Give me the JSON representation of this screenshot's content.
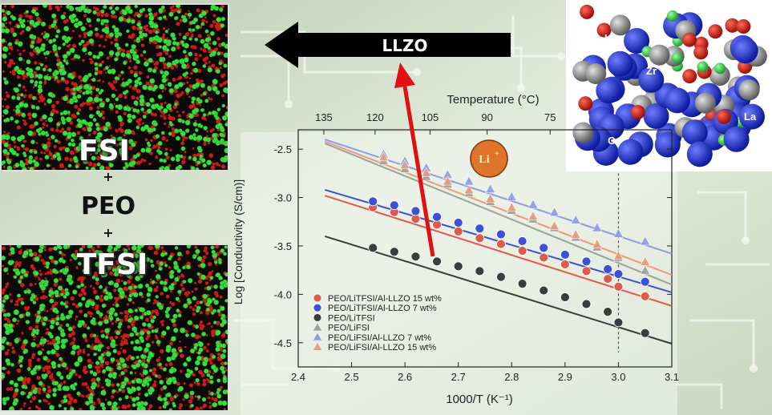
{
  "left_labels": {
    "top": "FSI",
    "plus1": "+",
    "middle": "PEO",
    "plus2": "+",
    "bottom": "TFSI"
  },
  "arrow_label": "LLZO",
  "crystal_labels": {
    "li": "Li",
    "zr": "Zr",
    "la": "La",
    "o": "O"
  },
  "li_badge": {
    "base": "Li",
    "sup": "+"
  },
  "colors": {
    "red_series": "#e05a4a",
    "blue_series": "#3d51d6",
    "black_series": "#3c3c3c",
    "gray_series": "#9aa29a",
    "lightblue_series": "#8d9be6",
    "salmon_series": "#e99a7c",
    "arrow_red": "#e21010",
    "atom_green": "#36e03a",
    "atom_red": "#d21a12"
  },
  "chart_data": {
    "type": "scatter",
    "xlabel": "1000/T (K⁻¹)",
    "ylabel": "Log [Conductivity (S/cm)]",
    "top_axis_label": "Temperature (°C)",
    "xlim": [
      2.4,
      3.1
    ],
    "ylim": [
      -4.75,
      -2.3
    ],
    "xticks": [
      "2.4",
      "2.5",
      "2.6",
      "2.7",
      "2.8",
      "2.9",
      "3.0",
      "3.1"
    ],
    "yticks": [
      "-2.5",
      "-3.0",
      "-3.5",
      "-4.0",
      "-4.5"
    ],
    "top_ticks": [
      {
        "label": "135",
        "x": 2.448
      },
      {
        "label": "120",
        "x": 2.544
      },
      {
        "label": "105",
        "x": 2.647
      },
      {
        "label": "90",
        "x": 2.754
      },
      {
        "label": "75",
        "x": 2.872
      }
    ],
    "vline_x": 3.0,
    "series": [
      {
        "name": "PEO/LiTFSI/Al-LLZO 15 wt%",
        "marker": "circle",
        "color": "#e05a4a",
        "x": [
          2.54,
          2.58,
          2.62,
          2.66,
          2.7,
          2.74,
          2.78,
          2.82,
          2.86,
          2.9,
          2.94,
          2.98,
          3.0,
          3.05
        ],
        "y": [
          -3.1,
          -3.15,
          -3.22,
          -3.28,
          -3.35,
          -3.42,
          -3.48,
          -3.55,
          -3.62,
          -3.69,
          -3.76,
          -3.84,
          -3.92,
          -4.02
        ],
        "fit": [
          [
            2.45,
            -2.98
          ],
          [
            3.1,
            -4.12
          ]
        ]
      },
      {
        "name": "PEO/LiTFSI/Al-LLZO 7 wt%",
        "marker": "circle",
        "color": "#3d51d6",
        "x": [
          2.54,
          2.58,
          2.62,
          2.66,
          2.7,
          2.74,
          2.78,
          2.82,
          2.86,
          2.9,
          2.94,
          2.98,
          3.0,
          3.05
        ],
        "y": [
          -3.04,
          -3.08,
          -3.14,
          -3.2,
          -3.26,
          -3.32,
          -3.38,
          -3.45,
          -3.52,
          -3.59,
          -3.66,
          -3.74,
          -3.79,
          -3.87
        ],
        "fit": [
          [
            2.45,
            -2.92
          ],
          [
            3.1,
            -3.98
          ]
        ]
      },
      {
        "name": "PEO/LiTFSI",
        "marker": "circle",
        "color": "#3c3c3c",
        "x": [
          2.54,
          2.58,
          2.62,
          2.66,
          2.7,
          2.74,
          2.78,
          2.82,
          2.86,
          2.9,
          2.94,
          2.98,
          3.0,
          3.05
        ],
        "y": [
          -3.52,
          -3.56,
          -3.61,
          -3.66,
          -3.71,
          -3.76,
          -3.82,
          -3.89,
          -3.96,
          -4.03,
          -4.1,
          -4.18,
          -4.29,
          -4.4
        ],
        "fit": [
          [
            2.45,
            -3.4
          ],
          [
            3.1,
            -4.51
          ]
        ]
      },
      {
        "name": "PEO/LiFSI",
        "marker": "triangle",
        "color": "#9aa29a",
        "x": [
          2.56,
          2.6,
          2.64,
          2.68,
          2.72,
          2.76,
          2.8,
          2.84,
          2.88,
          2.92,
          2.96,
          3.0,
          3.05
        ],
        "y": [
          -2.62,
          -2.7,
          -2.78,
          -2.86,
          -2.95,
          -3.04,
          -3.13,
          -3.22,
          -3.31,
          -3.41,
          -3.51,
          -3.62,
          -3.75
        ],
        "fit": [
          [
            2.45,
            -2.44
          ],
          [
            3.1,
            -3.9
          ]
        ]
      },
      {
        "name": "PEO/LiFSI/Al-LLZO 7 wt%",
        "marker": "triangle",
        "color": "#8d9be6",
        "x": [
          2.56,
          2.6,
          2.64,
          2.68,
          2.72,
          2.76,
          2.8,
          2.84,
          2.88,
          2.92,
          2.96,
          3.0,
          3.05
        ],
        "y": [
          -2.55,
          -2.62,
          -2.69,
          -2.76,
          -2.83,
          -2.91,
          -2.99,
          -3.07,
          -3.15,
          -3.23,
          -3.31,
          -3.37,
          -3.45
        ],
        "fit": [
          [
            2.45,
            -2.4
          ],
          [
            3.1,
            -3.58
          ]
        ]
      },
      {
        "name": "PEO/LiFSI/Al-LLZO 15 wt%",
        "marker": "triangle",
        "color": "#e99a7c",
        "x": [
          2.56,
          2.6,
          2.64,
          2.68,
          2.72,
          2.76,
          2.8,
          2.84,
          2.88,
          2.92,
          2.96,
          3.0,
          3.05
        ],
        "y": [
          -2.58,
          -2.66,
          -2.74,
          -2.83,
          -2.92,
          -3.01,
          -3.1,
          -3.19,
          -3.29,
          -3.38,
          -3.48,
          -3.6,
          -3.66
        ],
        "fit": [
          [
            2.45,
            -2.42
          ],
          [
            3.1,
            -3.8
          ]
        ]
      }
    ]
  }
}
